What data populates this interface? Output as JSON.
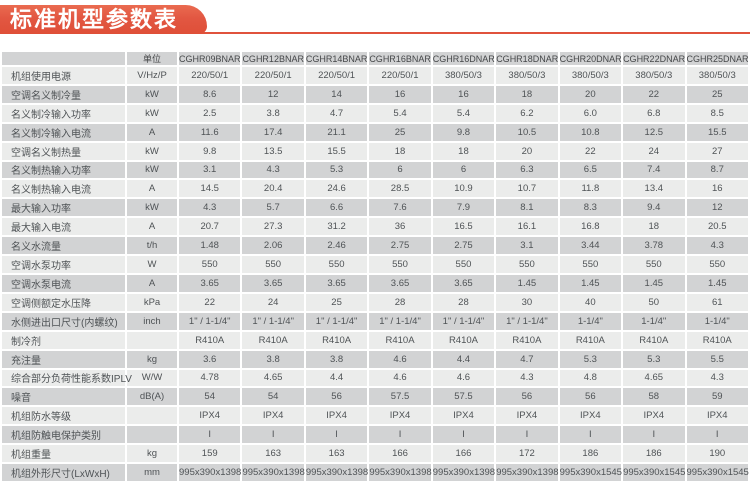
{
  "title": "标准机型参数表",
  "colors": {
    "accent": "#e0523c",
    "row_light": "#ebeceb",
    "row_medium": "#d2d3d4",
    "text": "#4f5356"
  },
  "table": {
    "unit_header": "单位",
    "models": [
      "CGHR09BNAR",
      "CGHR12BNAR",
      "CGHR14BNAR",
      "CGHR16BNAR",
      "CGHR16DNAR",
      "CGHR18DNAR",
      "CGHR20DNAR",
      "CGHR22DNAR",
      "CGHR25DNAR"
    ],
    "rows": [
      {
        "label": "机组使用电源",
        "unit": "V/Hz/P",
        "values": [
          "220/50/1",
          "220/50/1",
          "220/50/1",
          "220/50/1",
          "380/50/3",
          "380/50/3",
          "380/50/3",
          "380/50/3",
          "380/50/3"
        ]
      },
      {
        "label": "空调名义制冷量",
        "unit": "kW",
        "values": [
          "8.6",
          "12",
          "14",
          "16",
          "16",
          "18",
          "20",
          "22",
          "25"
        ]
      },
      {
        "label": "名义制冷输入功率",
        "unit": "kW",
        "values": [
          "2.5",
          "3.8",
          "4.7",
          "5.4",
          "5.4",
          "6.2",
          "6.0",
          "6.8",
          "8.5"
        ]
      },
      {
        "label": "名义制冷输入电流",
        "unit": "A",
        "values": [
          "11.6",
          "17.4",
          "21.1",
          "25",
          "9.8",
          "10.5",
          "10.8",
          "12.5",
          "15.5"
        ]
      },
      {
        "label": "空调名义制热量",
        "unit": "kW",
        "values": [
          "9.8",
          "13.5",
          "15.5",
          "18",
          "18",
          "20",
          "22",
          "24",
          "27"
        ]
      },
      {
        "label": "名义制热输入功率",
        "unit": "kW",
        "values": [
          "3.1",
          "4.3",
          "5.3",
          "6",
          "6",
          "6.3",
          "6.5",
          "7.4",
          "8.7"
        ]
      },
      {
        "label": "名义制热输入电流",
        "unit": "A",
        "values": [
          "14.5",
          "20.4",
          "24.6",
          "28.5",
          "10.9",
          "10.7",
          "11.8",
          "13.4",
          "16"
        ]
      },
      {
        "label": "最大输入功率",
        "unit": "kW",
        "values": [
          "4.3",
          "5.7",
          "6.6",
          "7.6",
          "7.9",
          "8.1",
          "8.3",
          "9.4",
          "12"
        ]
      },
      {
        "label": "最大输入电流",
        "unit": "A",
        "values": [
          "20.7",
          "27.3",
          "31.2",
          "36",
          "16.5",
          "16.1",
          "16.8",
          "18",
          "20.5"
        ]
      },
      {
        "label": "名义水流量",
        "unit": "t/h",
        "values": [
          "1.48",
          "2.06",
          "2.46",
          "2.75",
          "2.75",
          "3.1",
          "3.44",
          "3.78",
          "4.3"
        ]
      },
      {
        "label": "空调水泵功率",
        "unit": "W",
        "values": [
          "550",
          "550",
          "550",
          "550",
          "550",
          "550",
          "550",
          "550",
          "550"
        ]
      },
      {
        "label": "空调水泵电流",
        "unit": "A",
        "values": [
          "3.65",
          "3.65",
          "3.65",
          "3.65",
          "3.65",
          "1.45",
          "1.45",
          "1.45",
          "1.45"
        ]
      },
      {
        "label": "空调侧额定水压降",
        "unit": "kPa",
        "values": [
          "22",
          "24",
          "25",
          "28",
          "28",
          "30",
          "40",
          "50",
          "61"
        ]
      },
      {
        "label": "水侧进出口尺寸(内螺纹)",
        "unit": "inch",
        "values": [
          "1\" / 1-1/4\"",
          "1\" / 1-1/4\"",
          "1\" / 1-1/4\"",
          "1\" / 1-1/4\"",
          "1\" / 1-1/4\"",
          "1\" / 1-1/4\"",
          "1-1/4\"",
          "1-1/4\"",
          "1-1/4\""
        ]
      },
      {
        "label": "制冷剂",
        "unit": "",
        "values": [
          "R410A",
          "R410A",
          "R410A",
          "R410A",
          "R410A",
          "R410A",
          "R410A",
          "R410A",
          "R410A"
        ]
      },
      {
        "label": "充注量",
        "unit": "kg",
        "values": [
          "3.6",
          "3.8",
          "3.8",
          "4.6",
          "4.4",
          "4.7",
          "5.3",
          "5.3",
          "5.5"
        ]
      },
      {
        "label": "综合部分负荷性能系数IPLV",
        "unit": "W/W",
        "values": [
          "4.78",
          "4.65",
          "4.4",
          "4.6",
          "4.6",
          "4.3",
          "4.8",
          "4.65",
          "4.3"
        ]
      },
      {
        "label": "噪音",
        "unit": "dB(A)",
        "values": [
          "54",
          "54",
          "56",
          "57.5",
          "57.5",
          "56",
          "56",
          "58",
          "59"
        ]
      },
      {
        "label": "机组防水等级",
        "unit": "",
        "values": [
          "IPX4",
          "IPX4",
          "IPX4",
          "IPX4",
          "IPX4",
          "IPX4",
          "IPX4",
          "IPX4",
          "IPX4"
        ]
      },
      {
        "label": "机组防触电保护类别",
        "unit": "",
        "values": [
          "I",
          "I",
          "I",
          "I",
          "I",
          "I",
          "I",
          "I",
          "I"
        ]
      },
      {
        "label": "机组重量",
        "unit": "kg",
        "values": [
          "159",
          "163",
          "163",
          "166",
          "166",
          "172",
          "186",
          "186",
          "190"
        ]
      },
      {
        "label": "机组外形尺寸(LxWxH)",
        "unit": "mm",
        "values": [
          "995x390x1398",
          "995x390x1398",
          "995x390x1398",
          "995x390x1398",
          "995x390x1398",
          "995x390x1398",
          "995x390x1545",
          "995x390x1545",
          "995x390x1545"
        ]
      }
    ]
  }
}
